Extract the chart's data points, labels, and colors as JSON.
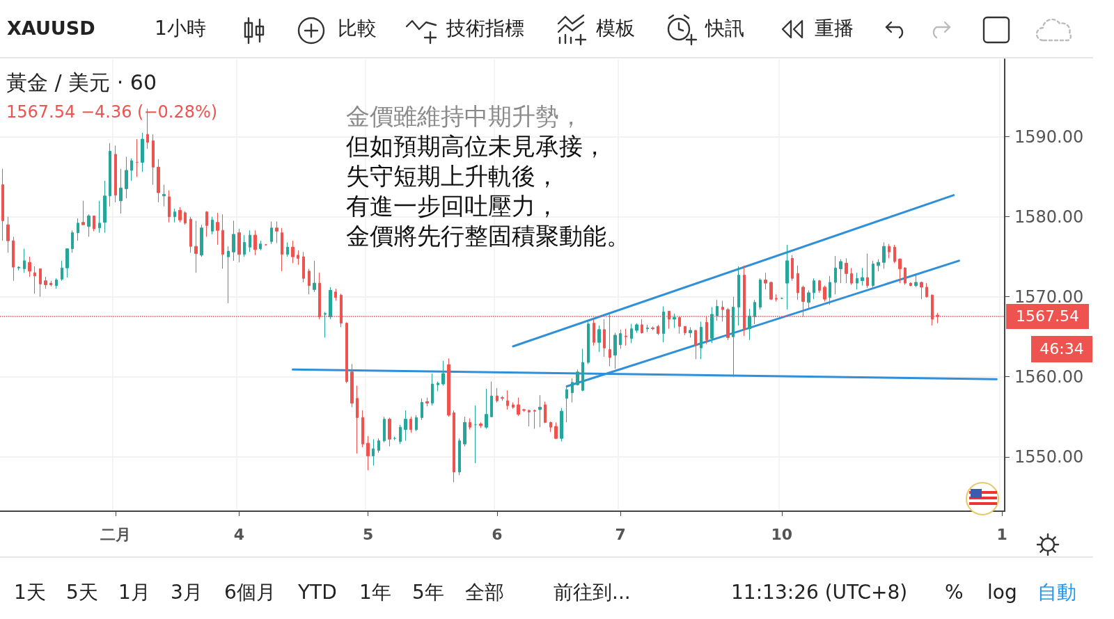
{
  "chart_data": {
    "type": "candlestick",
    "title": "黃金 / 美元 · 60",
    "subtitle": "1567.54 −4.36 (−0.28%)",
    "annotations": [
      "金價雖維持中期升勢，",
      "但如預期高位未見承接，",
      "失守短期上升軌後，",
      "有進一步回吐壓力，",
      "金價將先行整固積聚動能。",
      "46:34",
      "XAUUSD",
      "1小時",
      "比較",
      "技術指標",
      "模板",
      "快訊",
      "重播",
      "1天",
      "5天",
      "1月",
      "3月",
      "6個月",
      "YTD",
      "1年",
      "5年",
      "全部",
      "前往到...",
      "11:13:26 (UTC+8)",
      "%",
      "log",
      "自動"
    ],
    "categories": [
      null,
      null,
      null,
      null,
      null,
      null,
      null,
      null,
      null,
      null,
      null,
      null,
      null,
      null,
      null,
      null,
      null,
      null,
      null,
      null,
      null,
      "二月",
      null,
      null,
      null,
      null,
      null,
      null,
      null,
      null,
      null,
      null,
      null,
      null,
      null,
      null,
      null,
      null,
      null,
      null,
      null,
      null,
      null,
      null,
      "4",
      null,
      null,
      null,
      null,
      null,
      null,
      null,
      null,
      null,
      null,
      null,
      null,
      null,
      null,
      null,
      null,
      null,
      null,
      null,
      null,
      null,
      null,
      null,
      "5",
      null,
      null,
      null,
      null,
      null,
      null,
      null,
      null,
      null,
      null,
      null,
      null,
      null,
      null,
      null,
      null,
      null,
      null,
      null,
      null,
      null,
      null,
      null,
      "6",
      null,
      null,
      null,
      null,
      null,
      null,
      null,
      null,
      null,
      null,
      null,
      null,
      null,
      null,
      null,
      null,
      null,
      null,
      null,
      null,
      null,
      null,
      "7",
      null,
      null,
      null,
      null,
      null,
      null,
      null,
      null,
      null,
      null,
      null,
      null,
      null,
      null,
      null,
      null,
      null,
      null,
      null,
      null,
      null,
      null,
      null,
      null,
      null,
      null,
      null,
      null,
      null,
      "10",
      null,
      null,
      null,
      null,
      null,
      null,
      null,
      null,
      null,
      null,
      null,
      null,
      null,
      null,
      null,
      null,
      null,
      null,
      null,
      null,
      null,
      null,
      null,
      null,
      null,
      null,
      null,
      null,
      null,
      null,
      null,
      null,
      null,
      null,
      null,
      null,
      null,
      null,
      null,
      null,
      "1"
    ],
    "ohlc": [
      [
        1584,
        1586,
        1577,
        1579.5
      ],
      [
        1579,
        1580,
        1575.5,
        1577
      ],
      [
        1577,
        1577.5,
        1572,
        1573.7
      ],
      [
        1573.6,
        1573.8,
        1573.3,
        1573.7
      ],
      [
        1573.5,
        1576,
        1573,
        1574.5
      ],
      [
        1574.3,
        1575,
        1572.5,
        1573.2
      ],
      [
        1573,
        1573.8,
        1570.4,
        1572.6
      ],
      [
        1573.5,
        1573.5,
        1570,
        1571.6
      ],
      [
        1572,
        1572.5,
        1571,
        1571.5
      ],
      [
        1571.7,
        1572,
        1571.3,
        1571.5
      ],
      [
        1571.4,
        1572.3,
        1571,
        1572.1
      ],
      [
        1572.2,
        1574.5,
        1572,
        1573.6
      ],
      [
        1573.6,
        1576,
        1572.4,
        1576
      ],
      [
        1576,
        1578.3,
        1575.5,
        1578
      ],
      [
        1578,
        1579.8,
        1577,
        1579.2
      ],
      [
        1579.3,
        1582,
        1579,
        1579
      ],
      [
        1578.8,
        1580.3,
        1577.5,
        1580.1
      ],
      [
        1580.1,
        1580.1,
        1578.2,
        1578.5
      ],
      [
        1578.6,
        1582,
        1578,
        1579.2
      ],
      [
        1579.3,
        1584.5,
        1578,
        1582.6
      ],
      [
        1582.6,
        1589.2,
        1581.3,
        1588.2
      ],
      [
        1587.8,
        1588.9,
        1581.8,
        1582.7
      ],
      [
        1582,
        1586,
        1580.4,
        1583.6
      ],
      [
        1583.5,
        1587.5,
        1582.3,
        1585.8
      ],
      [
        1585.8,
        1587.3,
        1584.5,
        1587
      ],
      [
        1586.8,
        1589.7,
        1585,
        1586.8
      ],
      [
        1586.8,
        1590.5,
        1585.6,
        1589.7
      ],
      [
        1590.3,
        1593.5,
        1588.5,
        1589.3
      ],
      [
        1589.5,
        1590.3,
        1584,
        1586.2
      ],
      [
        1586.2,
        1587.2,
        1581.8,
        1583
      ],
      [
        1582.6,
        1584,
        1581.3,
        1582.8
      ],
      [
        1582.5,
        1583.3,
        1579.3,
        1580
      ],
      [
        1580,
        1581,
        1579.3,
        1580.6
      ],
      [
        1580.8,
        1581.2,
        1579.3,
        1579.6
      ],
      [
        1580.5,
        1580.7,
        1579,
        1579.2
      ],
      [
        1579.7,
        1580,
        1575.5,
        1576.3
      ],
      [
        1576.3,
        1579.5,
        1573,
        1575.4
      ],
      [
        1575.2,
        1579,
        1575,
        1578.6
      ],
      [
        1580.6,
        1580.7,
        1577.5,
        1578.9
      ],
      [
        1578.2,
        1580,
        1577.8,
        1579.6
      ],
      [
        1579.3,
        1580.5,
        1576.5,
        1578.3
      ],
      [
        1578.3,
        1580.3,
        1573.5,
        1575.3
      ],
      [
        1575,
        1576.3,
        1569.2,
        1575.7
      ],
      [
        1575.6,
        1579.5,
        1574.5,
        1577.8
      ],
      [
        1578,
        1578.5,
        1574.3,
        1575.3
      ],
      [
        1575.3,
        1577.7,
        1575,
        1576.8
      ],
      [
        1576.2,
        1578.3,
        1575.6,
        1577.7
      ],
      [
        1577.7,
        1578.3,
        1575.2,
        1575.9
      ],
      [
        1576,
        1577,
        1575.8,
        1576.6
      ],
      [
        1576.5,
        1576.6,
        1576.4,
        1576.5
      ],
      [
        1576.9,
        1579.4,
        1576.6,
        1578.6
      ],
      [
        1578.6,
        1579.4,
        1576.7,
        1578.2
      ],
      [
        1578,
        1578.6,
        1573.2,
        1575.3
      ],
      [
        1575.3,
        1576.8,
        1575,
        1576.2
      ],
      [
        1576.2,
        1577,
        1574.2,
        1575
      ],
      [
        1575.2,
        1575.8,
        1574,
        1574.8
      ],
      [
        1575,
        1575.6,
        1571.8,
        1572.3
      ],
      [
        1573.2,
        1573.5,
        1570.3,
        1571.4
      ],
      [
        1570.9,
        1574.5,
        1570.6,
        1571.7
      ],
      [
        1571.7,
        1573,
        1567.2,
        1567.5
      ],
      [
        1567.8,
        1568.1,
        1564.9,
        1567.9
      ],
      [
        1567.5,
        1571.2,
        1567.2,
        1570.8
      ],
      [
        1570.6,
        1571,
        1569.5,
        1569.9
      ],
      [
        1570.2,
        1570.4,
        1566.2,
        1566.7
      ],
      [
        1566.7,
        1566.8,
        1559.2,
        1559.4
      ],
      [
        1560.6,
        1561.6,
        1556.2,
        1556.7
      ],
      [
        1557.3,
        1558.9,
        1550.4,
        1554.9
      ],
      [
        1554.9,
        1555.8,
        1551.2,
        1551.6
      ],
      [
        1551.7,
        1552.6,
        1548.3,
        1550.1
      ],
      [
        1550.1,
        1552.2,
        1548.9,
        1551
      ],
      [
        1550.8,
        1552.3,
        1550.5,
        1552
      ],
      [
        1552,
        1555,
        1551.8,
        1554.7
      ],
      [
        1554.7,
        1554.9,
        1551.3,
        1552.2
      ],
      [
        1552.3,
        1552.5,
        1552.1,
        1552.3
      ],
      [
        1551.9,
        1554,
        1551.6,
        1553.7
      ],
      [
        1553.4,
        1555.8,
        1552,
        1554.7
      ],
      [
        1554.7,
        1555,
        1553,
        1553.4
      ],
      [
        1553.4,
        1555.2,
        1553.2,
        1554.9
      ],
      [
        1554.9,
        1557.3,
        1554.6,
        1556.8
      ],
      [
        1556.9,
        1557.4,
        1556.3,
        1556.7
      ],
      [
        1556.7,
        1560.4,
        1556.4,
        1559.1
      ],
      [
        1559,
        1559.4,
        1558.2,
        1559.2
      ],
      [
        1559.1,
        1562,
        1558.9,
        1560.4
      ],
      [
        1561.5,
        1562.3,
        1555,
        1555.2
      ],
      [
        1555.5,
        1555.8,
        1546.8,
        1548.1
      ],
      [
        1548.1,
        1552.3,
        1547.7,
        1552
      ],
      [
        1551.6,
        1555,
        1551.3,
        1554.3
      ],
      [
        1554.3,
        1554.8,
        1553.4,
        1553.7
      ],
      [
        1554,
        1556.4,
        1549.2,
        1554
      ],
      [
        1554.1,
        1554.3,
        1553.6,
        1553.9
      ],
      [
        1553.7,
        1558.5,
        1553.5,
        1555.3
      ],
      [
        1555,
        1559.4,
        1555,
        1557.6
      ],
      [
        1557.6,
        1558.6,
        1556.8,
        1557
      ],
      [
        1557.4,
        1557.6,
        1557,
        1557.3
      ],
      [
        1557,
        1558.3,
        1555.9,
        1556.4
      ],
      [
        1556.5,
        1556.8,
        1556,
        1556.2
      ],
      [
        1556.5,
        1557.4,
        1555.1,
        1555.3
      ],
      [
        1555.9,
        1556,
        1555.6,
        1555.8
      ],
      [
        1555.8,
        1555.9,
        1553.8,
        1555.6
      ],
      [
        1555.8,
        1555.9,
        1553.5,
        1555.7
      ],
      [
        1555.9,
        1557.7,
        1553.7,
        1556.2
      ],
      [
        1556.5,
        1556.9,
        1554.2,
        1554.3
      ],
      [
        1554.3,
        1554.4,
        1553.1,
        1553.7
      ],
      [
        1553.8,
        1554.3,
        1552.2,
        1552.3
      ],
      [
        1552.3,
        1556.1,
        1551.9,
        1555.7
      ],
      [
        1557.3,
        1558.8,
        1554.3,
        1558.4
      ],
      [
        1558,
        1559.8,
        1556.8,
        1559.3
      ],
      [
        1559,
        1560.9,
        1558.9,
        1560.6
      ],
      [
        1558.3,
        1563.5,
        1558.2,
        1561.8
      ],
      [
        1561.8,
        1566.9,
        1561.6,
        1566.6
      ],
      [
        1566.7,
        1567.2,
        1563.9,
        1564.3
      ],
      [
        1564.3,
        1566.4,
        1563.1,
        1565.9
      ],
      [
        1565.9,
        1567.2,
        1562.5,
        1563.6
      ],
      [
        1563.4,
        1567.8,
        1561.3,
        1562.4
      ],
      [
        1562.7,
        1565.5,
        1561,
        1565.2
      ],
      [
        1564,
        1565.9,
        1563.5,
        1565.4
      ],
      [
        1565.1,
        1566,
        1563.9,
        1565
      ],
      [
        1564.8,
        1566.6,
        1564.2,
        1566
      ],
      [
        1565.8,
        1566.7,
        1565.5,
        1566.5
      ],
      [
        1566.5,
        1567.2,
        1565.4,
        1565.5
      ],
      [
        1566,
        1566.5,
        1565.6,
        1566.1
      ],
      [
        1566.1,
        1566.3,
        1565.8,
        1566
      ],
      [
        1566.3,
        1566.5,
        1565.2,
        1565.4
      ],
      [
        1565.4,
        1568.8,
        1564.3,
        1568.1
      ],
      [
        1568.2,
        1568.2,
        1566,
        1567.2
      ],
      [
        1567.2,
        1567.9,
        1566.1,
        1567.4
      ],
      [
        1567.4,
        1567.6,
        1565.4,
        1566.3
      ],
      [
        1566.3,
        1566.3,
        1565.2,
        1565.5
      ],
      [
        1565.5,
        1566.2,
        1564.9,
        1565.8
      ],
      [
        1565.8,
        1565.8,
        1562.2,
        1563.9
      ],
      [
        1563.6,
        1566.9,
        1562.2,
        1566.2
      ],
      [
        1566.8,
        1567.5,
        1564.1,
        1564.6
      ],
      [
        1564.8,
        1568.7,
        1564.2,
        1567.8
      ],
      [
        1567.6,
        1569.6,
        1567,
        1568.8
      ],
      [
        1568.7,
        1569.5,
        1566.9,
        1568.4
      ],
      [
        1568.4,
        1568.6,
        1564.6,
        1564.9
      ],
      [
        1565,
        1570,
        1560,
        1568.7
      ],
      [
        1568.7,
        1573.8,
        1566.4,
        1572.7
      ],
      [
        1572.7,
        1573.9,
        1565.1,
        1566
      ],
      [
        1566,
        1568.5,
        1564.6,
        1567.6
      ],
      [
        1567.5,
        1569.6,
        1566.6,
        1569.3
      ],
      [
        1568.7,
        1572.3,
        1568.4,
        1572.1
      ],
      [
        1572.1,
        1573,
        1570.9,
        1571.7
      ],
      [
        1571.8,
        1571.9,
        1569.6,
        1569.7
      ],
      [
        1569.8,
        1570.3,
        1569.4,
        1569.7
      ],
      [
        1569.8,
        1569.9,
        1569.7,
        1569.8
      ],
      [
        1571.7,
        1576.5,
        1568.4,
        1574.5
      ],
      [
        1574.8,
        1575.2,
        1572,
        1572.3
      ],
      [
        1572.9,
        1573.9,
        1569.6,
        1570.5
      ],
      [
        1571.2,
        1571.4,
        1567.5,
        1569.4
      ],
      [
        1569.3,
        1570.8,
        1568.4,
        1570.5
      ],
      [
        1570.5,
        1572.3,
        1569.7,
        1572
      ],
      [
        1572,
        1572.1,
        1570.5,
        1570.8
      ],
      [
        1571.2,
        1571.4,
        1569.4,
        1569.7
      ],
      [
        1569.9,
        1572.6,
        1569,
        1571.8
      ],
      [
        1571.8,
        1575.1,
        1570.3,
        1573.6
      ],
      [
        1573.5,
        1574.7,
        1571.7,
        1574.4
      ],
      [
        1574.2,
        1574.8,
        1571.7,
        1572.9
      ],
      [
        1572.9,
        1573.6,
        1571.5,
        1571.7
      ],
      [
        1571.7,
        1573,
        1570.9,
        1572.3
      ],
      [
        1572,
        1573.6,
        1571.4,
        1572.4
      ],
      [
        1572.4,
        1575.4,
        1571.1,
        1571.4
      ],
      [
        1571.4,
        1574.5,
        1571.2,
        1574.1
      ],
      [
        1573.9,
        1574.7,
        1573.2,
        1574.3
      ],
      [
        1574.3,
        1576.8,
        1573.5,
        1576.3
      ],
      [
        1576.3,
        1576.6,
        1574.8,
        1575.6
      ],
      [
        1576.2,
        1576.5,
        1574.2,
        1574.4
      ],
      [
        1574.7,
        1574.8,
        1571.7,
        1573.5
      ],
      [
        1573.6,
        1573.7,
        1571.5,
        1571.7
      ],
      [
        1571.7,
        1571.8,
        1571.3,
        1571.4
      ],
      [
        1571.4,
        1572.9,
        1571.2,
        1571.8
      ],
      [
        1571.8,
        1571.9,
        1569.7,
        1571.2
      ],
      [
        1571.2,
        1571.7,
        1569.9,
        1570
      ],
      [
        1570.2,
        1570.3,
        1566.4,
        1567.2
      ],
      [
        1567.7,
        1568,
        1566.7,
        1567.54
      ],
      null,
      null,
      null,
      null,
      null,
      null,
      null,
      null,
      null,
      null,
      null,
      null
    ],
    "series": [
      {
        "type": "line",
        "color": "#2f8fd8",
        "values": [
          null,
          null,
          null,
          null,
          null,
          null,
          null,
          null,
          null,
          null,
          null,
          null,
          null,
          null,
          null,
          null,
          null,
          null,
          null,
          null,
          null,
          null,
          null,
          null,
          null,
          null,
          null,
          null,
          null,
          null,
          null,
          null,
          null,
          null,
          null,
          null,
          null,
          null,
          null,
          null,
          null,
          null,
          null,
          null,
          null,
          null,
          null,
          null,
          null,
          null,
          null,
          null,
          null,
          null,
          null,
          null,
          null,
          null,
          null,
          null,
          null,
          null,
          null,
          null,
          null,
          null,
          null,
          null,
          null,
          null,
          null,
          null,
          null,
          null,
          null,
          null,
          null,
          null,
          null,
          null,
          null,
          null,
          null,
          null,
          null,
          null,
          null,
          null,
          null,
          null,
          null,
          null,
          null,
          null,
          null,
          1563.8,
          null,
          null,
          null,
          null,
          null,
          null,
          null,
          null,
          null,
          null,
          null,
          null,
          null,
          null,
          null,
          null,
          null,
          null,
          null,
          null,
          null,
          null,
          null,
          null,
          null,
          null,
          null,
          null,
          null,
          null,
          null,
          null,
          null,
          null,
          null,
          null,
          null,
          null,
          null,
          null,
          null,
          null,
          null,
          null,
          null,
          null,
          null,
          null,
          null,
          null,
          null,
          null,
          null,
          null,
          null,
          null,
          null,
          null,
          null,
          null,
          null,
          null,
          null,
          null,
          null,
          null,
          null,
          null,
          null,
          null,
          null,
          null,
          null,
          null,
          null,
          null,
          null,
          null,
          null,
          null,
          null,
          1582.7,
          null,
          null,
          null,
          null,
          null,
          null,
          null,
          null,
          null
        ]
      },
      {
        "type": "line",
        "color": "#2f8fd8",
        "values": [
          null,
          null,
          null,
          null,
          null,
          null,
          null,
          null,
          null,
          null,
          null,
          null,
          null,
          null,
          null,
          null,
          null,
          null,
          null,
          null,
          null,
          null,
          null,
          null,
          null,
          null,
          null,
          null,
          null,
          null,
          null,
          null,
          null,
          null,
          null,
          null,
          null,
          null,
          null,
          null,
          null,
          null,
          null,
          null,
          null,
          null,
          null,
          null,
          null,
          null,
          null,
          null,
          null,
          null,
          null,
          null,
          null,
          null,
          null,
          null,
          null,
          null,
          null,
          null,
          null,
          null,
          null,
          null,
          null,
          null,
          null,
          null,
          null,
          null,
          null,
          null,
          null,
          null,
          null,
          null,
          null,
          null,
          null,
          null,
          null,
          null,
          null,
          null,
          null,
          null,
          null,
          null,
          null,
          null,
          null,
          null,
          null,
          null,
          null,
          null,
          null,
          null,
          null,
          null,
          null,
          1558.8,
          null,
          null,
          null,
          null,
          null,
          null,
          null,
          null,
          null,
          null,
          null,
          null,
          null,
          null,
          null,
          null,
          null,
          null,
          null,
          null,
          null,
          null,
          null,
          null,
          null,
          null,
          null,
          null,
          null,
          null,
          null,
          null,
          null,
          null,
          null,
          null,
          null,
          null,
          null,
          null,
          null,
          null,
          null,
          null,
          null,
          null,
          null,
          null,
          null,
          null,
          null,
          null,
          null,
          null,
          null,
          null,
          null,
          null,
          null,
          null,
          null,
          null,
          null,
          null,
          null,
          null,
          null,
          null,
          null,
          null,
          null,
          null,
          1574.5,
          null,
          null,
          null,
          null,
          null,
          null,
          null,
          null
        ]
      },
      {
        "type": "line",
        "color": "#2f8fd8",
        "values": [
          null,
          null,
          null,
          null,
          null,
          null,
          null,
          null,
          null,
          null,
          null,
          null,
          null,
          null,
          null,
          null,
          null,
          null,
          null,
          null,
          null,
          null,
          null,
          null,
          null,
          null,
          null,
          null,
          null,
          null,
          null,
          null,
          null,
          null,
          null,
          null,
          null,
          null,
          null,
          null,
          null,
          null,
          null,
          null,
          null,
          null,
          null,
          null,
          null,
          null,
          null,
          null,
          null,
          null,
          1560.9,
          null,
          null,
          null,
          null,
          null,
          null,
          null,
          null,
          null,
          null,
          null,
          null,
          null,
          null,
          null,
          null,
          null,
          null,
          null,
          null,
          null,
          null,
          null,
          null,
          null,
          null,
          null,
          null,
          null,
          null,
          null,
          null,
          null,
          null,
          null,
          null,
          null,
          null,
          null,
          null,
          null,
          null,
          null,
          null,
          null,
          null,
          null,
          null,
          null,
          null,
          null,
          null,
          null,
          null,
          null,
          null,
          null,
          null,
          null,
          null,
          null,
          null,
          null,
          null,
          null,
          null,
          null,
          null,
          null,
          null,
          null,
          null,
          null,
          null,
          null,
          null,
          null,
          null,
          null,
          null,
          null,
          null,
          null,
          null,
          null,
          null,
          null,
          null,
          null,
          null,
          null,
          null,
          null,
          null,
          null,
          null,
          null,
          null,
          null,
          null,
          null,
          null,
          null,
          null,
          null,
          null,
          null,
          null,
          null,
          null,
          null,
          null,
          null,
          null,
          null,
          null,
          null,
          null,
          null,
          null,
          null,
          null,
          null,
          null,
          null,
          null,
          null,
          null,
          null,
          null,
          1559.7,
          null
        ]
      }
    ],
    "ylim": [
      1543.2,
      1599.7
    ],
    "yticks": [
      {
        "value": 1550,
        "label": "1550.00"
      },
      {
        "value": 1560,
        "label": "1560.00"
      },
      {
        "value": 1570,
        "label": "1570.00"
      },
      {
        "value": 1580,
        "label": "1580.00"
      },
      {
        "value": 1590,
        "label": "1590.00"
      }
    ],
    "grid": true,
    "ref_lines": [
      {
        "axis": "y",
        "value": 1567.54,
        "label": "1567.54",
        "color": "#ef5350",
        "line_style": "dotted"
      }
    ]
  }
}
